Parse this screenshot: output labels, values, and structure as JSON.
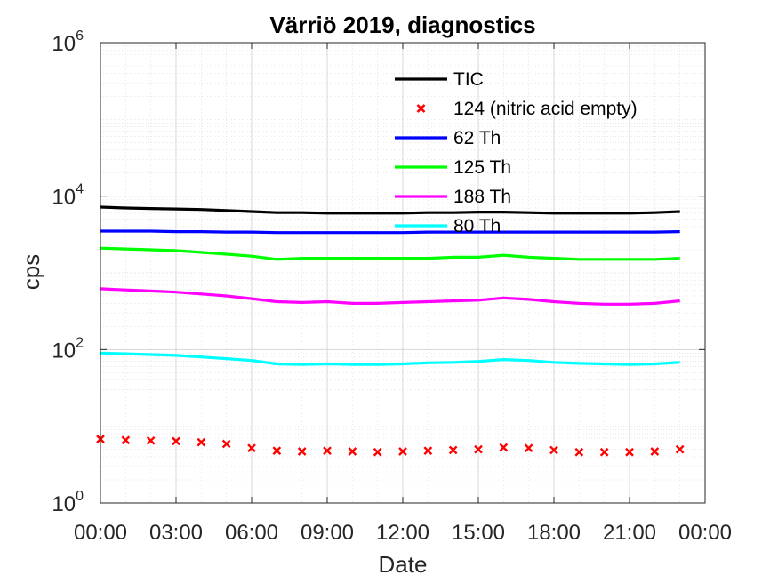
{
  "chart_data": {
    "type": "line",
    "title": "Värriö 2019, diagnostics",
    "xlabel": "Date",
    "ylabel": "cps",
    "xlim": [
      0,
      24
    ],
    "ylim": [
      1,
      1000000
    ],
    "yscale": "log",
    "grid": true,
    "minor_grid": true,
    "legend_position": "upper-right",
    "x_ticks": [
      0,
      3,
      6,
      9,
      12,
      15,
      18,
      21,
      24
    ],
    "x_tick_labels": [
      "00:00",
      "03:00",
      "06:00",
      "09:00",
      "12:00",
      "15:00",
      "18:00",
      "21:00",
      "00:00"
    ],
    "y_ticks": [
      {
        "value": 1,
        "base": "10",
        "exp": "0"
      },
      {
        "value": 100,
        "base": "10",
        "exp": "2"
      },
      {
        "value": 10000,
        "base": "10",
        "exp": "4"
      },
      {
        "value": 1000000,
        "base": "10",
        "exp": "6"
      }
    ],
    "x_hours": [
      0,
      1,
      2,
      3,
      4,
      5,
      6,
      7,
      8,
      9,
      10,
      11,
      12,
      13,
      14,
      15,
      16,
      17,
      18,
      19,
      20,
      21,
      22,
      23
    ],
    "series": [
      {
        "name": "TIC",
        "color": "#000000",
        "style": "line",
        "values": [
          7200,
          7000,
          6900,
          6800,
          6700,
          6500,
          6300,
          6100,
          6100,
          6000,
          6000,
          6000,
          6000,
          6100,
          6100,
          6200,
          6200,
          6100,
          6000,
          6000,
          6000,
          6000,
          6100,
          6300
        ]
      },
      {
        "name": "124 (nitric acid empty)",
        "color": "#ff0000",
        "style": "marker",
        "values": [
          6.8,
          6.6,
          6.5,
          6.4,
          6.2,
          5.9,
          5.2,
          4.8,
          4.7,
          4.8,
          4.7,
          4.6,
          4.7,
          4.8,
          4.9,
          5.0,
          5.3,
          5.2,
          4.9,
          4.6,
          4.6,
          4.6,
          4.7,
          5.0
        ]
      },
      {
        "name": "62 Th",
        "color": "#0000ff",
        "style": "line",
        "values": [
          3500,
          3500,
          3500,
          3450,
          3450,
          3400,
          3400,
          3350,
          3350,
          3350,
          3350,
          3350,
          3350,
          3400,
          3400,
          3400,
          3400,
          3400,
          3400,
          3400,
          3400,
          3400,
          3400,
          3450
        ]
      },
      {
        "name": "125 Th",
        "color": "#00ff00",
        "style": "line",
        "values": [
          2100,
          2050,
          2000,
          1950,
          1850,
          1750,
          1650,
          1500,
          1550,
          1550,
          1550,
          1550,
          1550,
          1550,
          1600,
          1600,
          1700,
          1600,
          1550,
          1500,
          1500,
          1500,
          1500,
          1550
        ]
      },
      {
        "name": "188 Th",
        "color": "#ff00ff",
        "style": "line",
        "values": [
          620,
          600,
          580,
          560,
          530,
          500,
          460,
          420,
          410,
          420,
          400,
          400,
          410,
          420,
          430,
          440,
          470,
          450,
          420,
          400,
          390,
          390,
          400,
          430
        ]
      },
      {
        "name": "80 Th",
        "color": "#00ffff",
        "style": "line",
        "values": [
          90,
          88,
          86,
          84,
          80,
          76,
          72,
          65,
          64,
          65,
          64,
          64,
          65,
          67,
          68,
          70,
          74,
          72,
          68,
          66,
          65,
          64,
          65,
          68
        ]
      }
    ]
  }
}
